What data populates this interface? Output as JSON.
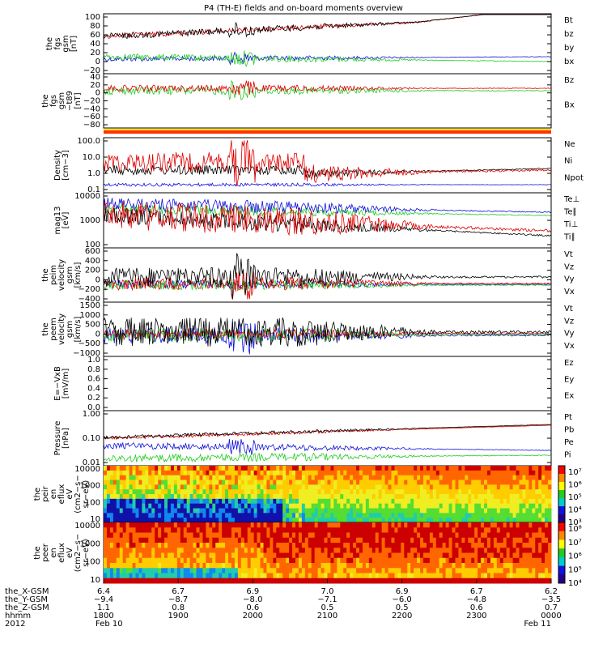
{
  "title": "P4 (TH-E) fields and on-board moments overview",
  "colors": {
    "black": "#000000",
    "red": "#dd0000",
    "green": "#22cc22",
    "blue": "#1111dd",
    "orange": "#ff8800"
  },
  "chart_data": {
    "type": "line",
    "x_axis": {
      "rows": [
        {
          "label": "the_X-GSM",
          "values": [
            "6.4",
            "6.7",
            "6.9",
            "7.0",
            "6.9",
            "6.7",
            "6.2"
          ]
        },
        {
          "label": "the_Y-GSM",
          "values": [
            "−9.4",
            "−8.7",
            "−8.0",
            "−7.1",
            "−6.0",
            "−4.8",
            "−3.5"
          ]
        },
        {
          "label": "the_Z-GSM",
          "values": [
            "1.1",
            "0.8",
            "0.6",
            "0.5",
            "0.5",
            "0.6",
            "0.7"
          ]
        },
        {
          "label": "hhmm",
          "values": [
            "1800",
            "1900",
            "2000",
            "2100",
            "2200",
            "2300",
            "0000"
          ]
        },
        {
          "label": "2012",
          "values": [
            "Feb 10",
            "",
            "",
            "",
            "",
            "",
            "Feb 11"
          ]
        }
      ]
    },
    "panels": [
      {
        "id": "fgs-gsm",
        "ylabel": [
          "the",
          "fgs",
          "gsm",
          "[nT]"
        ],
        "ticks": [
          "100",
          "80",
          "60",
          "40",
          "20",
          "0",
          "−20"
        ],
        "series": [
          {
            "name": "Bt",
            "color": "black"
          },
          {
            "name": "bz",
            "color": "red"
          },
          {
            "name": "by",
            "color": "green"
          },
          {
            "name": "bx",
            "color": "blue"
          }
        ]
      },
      {
        "id": "fgs-dsl",
        "ylabel": [
          "the",
          "fgs",
          "gsm",
          "−t89",
          "[nT]"
        ],
        "ticks": [
          "40",
          "20",
          "0",
          "−20",
          "−40",
          "−60",
          "−80"
        ],
        "series": [
          {
            "name": "Bz",
            "color": "red"
          },
          {
            "name": "Bx",
            "color": "green"
          }
        ]
      },
      {
        "id": "density",
        "ylabel": [
          "Density",
          "[cm−3]"
        ],
        "ticks": [
          "100.0",
          "10.0",
          "1.0",
          "0.1"
        ],
        "series": [
          {
            "name": "Ne",
            "color": "red"
          },
          {
            "name": "Ni",
            "color": "black"
          },
          {
            "name": "Npot",
            "color": "blue"
          }
        ]
      },
      {
        "id": "temp",
        "ylabel": [
          "mag13",
          "[eV]"
        ],
        "ticks": [
          "10000",
          "1000",
          "100"
        ],
        "series": [
          {
            "name": "Te⊥",
            "color": "red"
          },
          {
            "name": "Te∥",
            "color": "black"
          },
          {
            "name": "Ti⊥",
            "color": "blue"
          },
          {
            "name": "Ti∥",
            "color": "green"
          }
        ]
      },
      {
        "id": "peim-vel",
        "ylabel": [
          "the",
          "peim",
          "velocity",
          "gsm",
          "[km/s]"
        ],
        "ticks": [
          "600",
          "400",
          "200",
          "0",
          "−200",
          "−400"
        ],
        "series": [
          {
            "name": "Vt",
            "color": "black"
          },
          {
            "name": "Vz",
            "color": "red"
          },
          {
            "name": "Vy",
            "color": "green"
          },
          {
            "name": "Vx",
            "color": "blue"
          }
        ]
      },
      {
        "id": "peem-vel",
        "ylabel": [
          "the",
          "peem",
          "velocity",
          "gsm",
          "[km/s]"
        ],
        "ticks": [
          "1500",
          "1000",
          "500",
          "0",
          "−500",
          "−1000"
        ],
        "series": [
          {
            "name": "Vt",
            "color": "black"
          },
          {
            "name": "Vz",
            "color": "red"
          },
          {
            "name": "Vy",
            "color": "green"
          },
          {
            "name": "Vx",
            "color": "blue"
          }
        ]
      },
      {
        "id": "efield",
        "ylabel": [
          "E=−VxB",
          "[mV/m]"
        ],
        "ticks": [
          "1.0",
          "0.8",
          "0.6",
          "0.4",
          "0.2",
          "0.0"
        ],
        "series": [
          {
            "name": "Ez",
            "color": "red"
          },
          {
            "name": "Ey",
            "color": "green"
          },
          {
            "name": "Ex",
            "color": "blue"
          }
        ]
      },
      {
        "id": "pressure",
        "ylabel": [
          "Pressure",
          "[nPa]"
        ],
        "ticks": [
          "1.00",
          "0.10",
          "0.01"
        ],
        "series": [
          {
            "name": "Pt",
            "color": "black"
          },
          {
            "name": "Pb",
            "color": "red"
          },
          {
            "name": "Pe",
            "color": "green"
          },
          {
            "name": "Pi",
            "color": "blue"
          }
        ]
      },
      {
        "id": "peir-spec",
        "ylabel": [
          "the",
          "peir",
          "en",
          "eflux",
          "eV",
          "(cm2−s−",
          "sr−eV)"
        ],
        "ticks": [
          "10000",
          "1000",
          "100",
          "10"
        ],
        "colorbar": [
          "10⁷",
          "10⁶",
          "10⁵",
          "10⁴",
          "10³"
        ]
      },
      {
        "id": "peer-spec",
        "ylabel": [
          "the",
          "peer",
          "en",
          "eflux",
          "eV",
          "(cm2−s−",
          "sr−eV)"
        ],
        "ticks": [
          "10000",
          "1000",
          "100",
          "10"
        ],
        "colorbar": [
          "10⁸",
          "10⁷",
          "10⁶",
          "10⁵",
          "10⁴"
        ]
      }
    ]
  }
}
